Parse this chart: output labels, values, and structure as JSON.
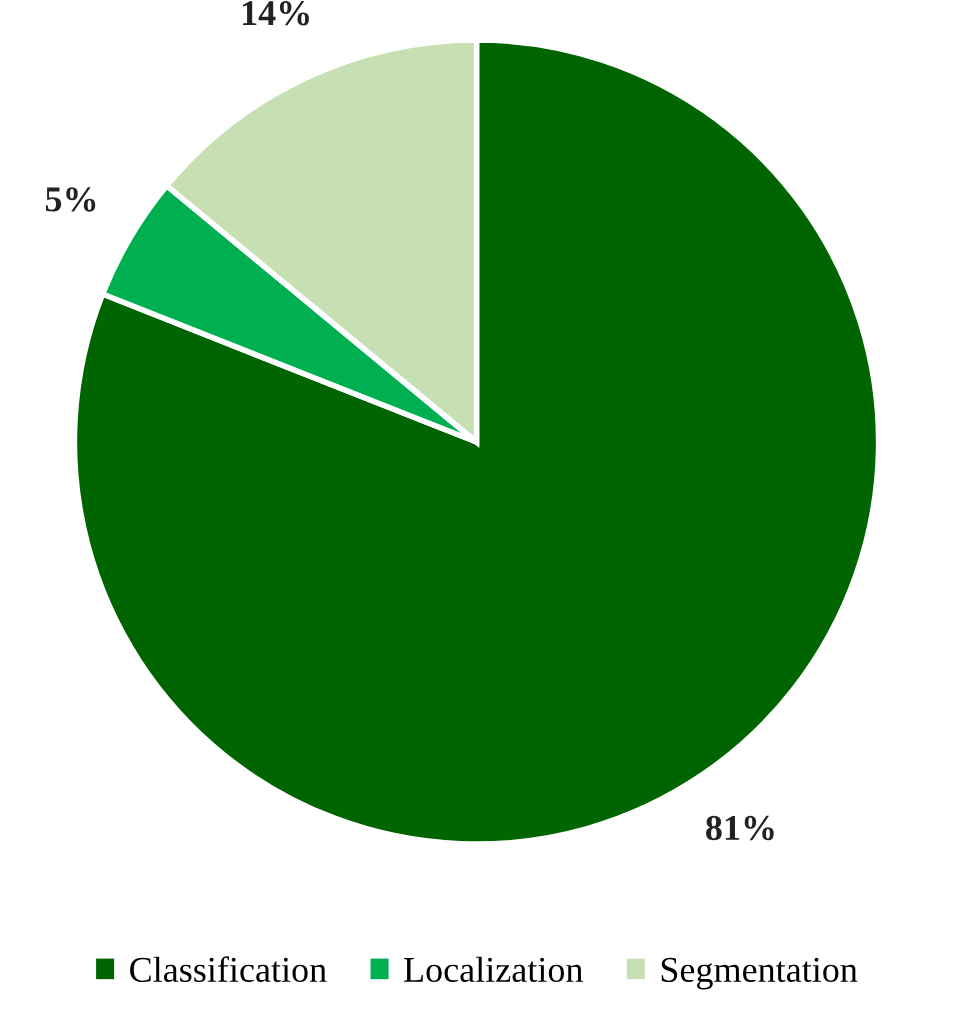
{
  "chart_data": {
    "type": "pie",
    "categories": [
      "Classification",
      "Localization",
      "Segmentation"
    ],
    "values": [
      81,
      5,
      14
    ],
    "value_labels": [
      "81%",
      "5%",
      "14%"
    ],
    "colors": [
      "#006400",
      "#00b050",
      "#c6e0b4"
    ],
    "legend": "bottom"
  }
}
